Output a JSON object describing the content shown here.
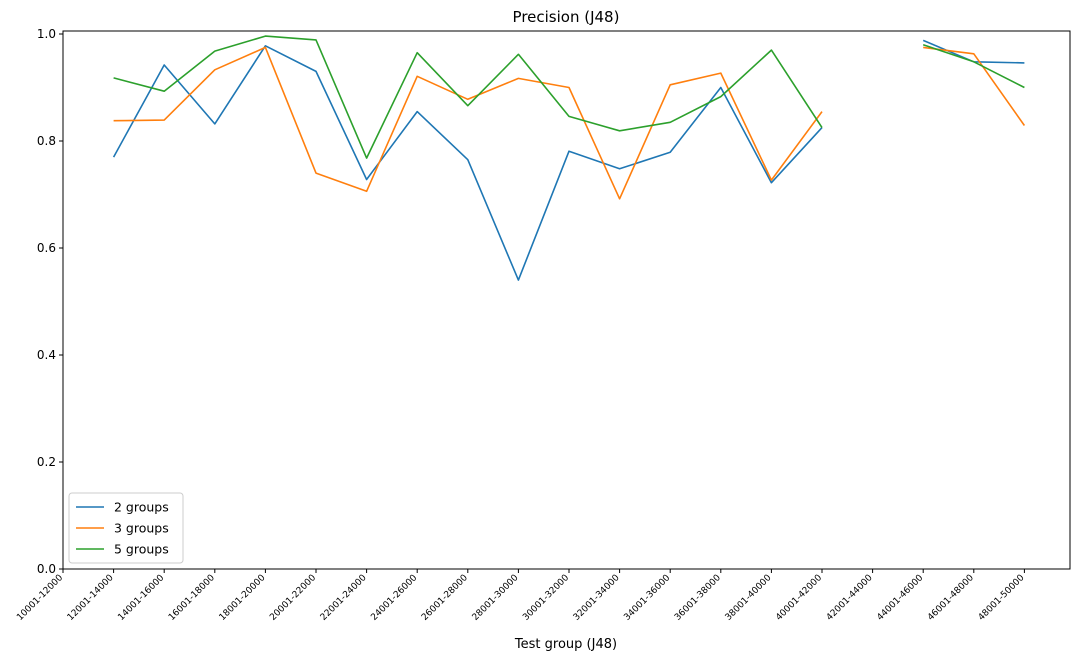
{
  "chart_data": {
    "type": "line",
    "title": "Precision (J48)",
    "xlabel": "Test group (J48)",
    "ylabel": "",
    "ylim": [
      0.0,
      1.0
    ],
    "yticks": [
      "0.0",
      "0.2",
      "0.4",
      "0.6",
      "0.8",
      "1.0"
    ],
    "categories": [
      "10001-12000",
      "12001-14000",
      "14001-16000",
      "16001-18000",
      "18001-20000",
      "20001-22000",
      "22001-24000",
      "24001-26000",
      "26001-28000",
      "28001-30000",
      "30001-32000",
      "32001-34000",
      "34001-36000",
      "36001-38000",
      "38001-40000",
      "40001-42000",
      "42001-44000",
      "44001-46000",
      "46001-48000",
      "48001-50000"
    ],
    "legend_position": "lower-left",
    "grid": false,
    "series": [
      {
        "name": "2 groups",
        "color": "#1f77b4",
        "values": [
          null,
          0.77,
          0.942,
          0.832,
          0.978,
          0.93,
          0.728,
          0.855,
          0.765,
          0.54,
          0.781,
          0.748,
          0.779,
          0.9,
          0.722,
          0.825,
          null,
          0.988,
          0.948,
          0.946
        ]
      },
      {
        "name": "3 groups",
        "color": "#ff7f0e",
        "values": [
          null,
          0.838,
          0.839,
          0.933,
          0.975,
          0.74,
          0.706,
          0.921,
          0.878,
          0.917,
          0.9,
          0.692,
          0.905,
          0.927,
          0.727,
          0.855,
          null,
          0.975,
          0.963,
          0.829
        ]
      },
      {
        "name": "5 groups",
        "color": "#2ca02c",
        "values": [
          null,
          0.918,
          0.893,
          0.968,
          0.996,
          0.989,
          0.768,
          0.965,
          0.866,
          0.962,
          0.846,
          0.819,
          0.835,
          0.883,
          0.97,
          0.825,
          null,
          0.98,
          0.948,
          0.9
        ]
      }
    ]
  }
}
